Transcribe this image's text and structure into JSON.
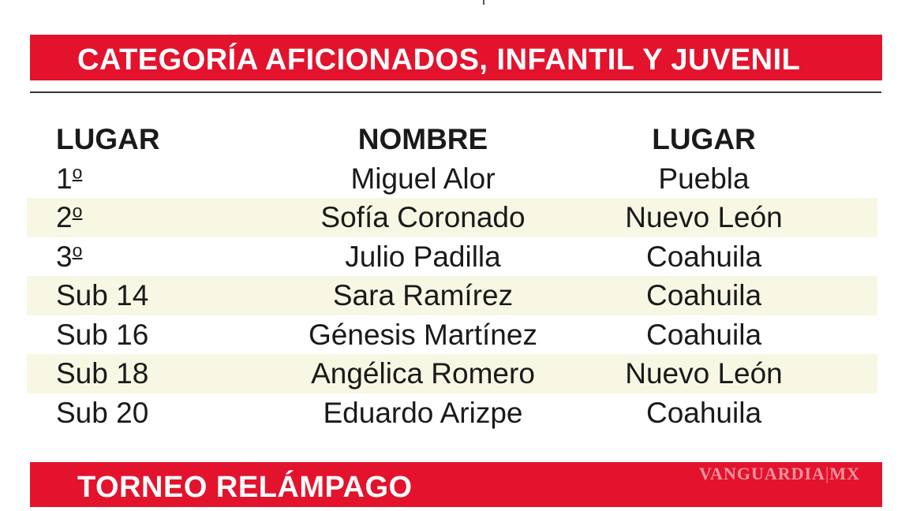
{
  "section_title": "CATEGORÍA AFICIONADOS, INFANTIL Y JUVENIL",
  "table": {
    "headers": [
      "LUGAR",
      "NOMBRE",
      "LUGAR"
    ],
    "rows": [
      {
        "place": "1",
        "place_suffix": "o",
        "name": "Miguel Alor",
        "state": "Puebla"
      },
      {
        "place": "2",
        "place_suffix": "o",
        "name": "Sofía Coronado",
        "state": "Nuevo León"
      },
      {
        "place": "3",
        "place_suffix": "o",
        "name": "Julio Padilla",
        "state": "Coahuila"
      },
      {
        "place": "Sub 14",
        "place_suffix": "",
        "name": "Sara Ramírez",
        "state": "Coahuila"
      },
      {
        "place": "Sub 16",
        "place_suffix": "",
        "name": "Génesis Martínez",
        "state": "Coahuila"
      },
      {
        "place": "Sub 18",
        "place_suffix": "",
        "name": "Angélica Romero",
        "state": "Nuevo León"
      },
      {
        "place": "Sub 20",
        "place_suffix": "",
        "name": "Eduardo Arizpe",
        "state": "Coahuila"
      }
    ]
  },
  "next_section_title": "TORNEO RELÁMPAGO",
  "watermark": {
    "brand": "VANGUARDIA",
    "separator": "|",
    "suffix": "MX"
  },
  "colors": {
    "banner": "#e3132d",
    "row_shade": "#f8f7e4",
    "text": "#1a1a1a"
  }
}
